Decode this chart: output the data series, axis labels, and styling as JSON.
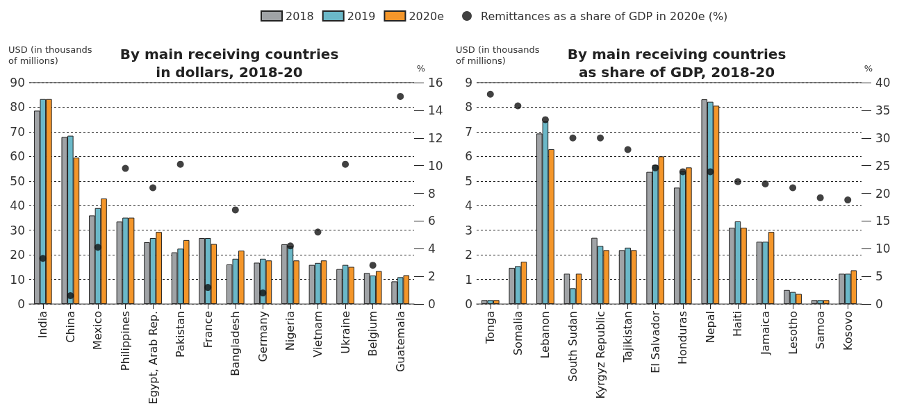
{
  "chart_data": [
    {
      "type": "bar",
      "title": "By main receiving countries\nin dollars, 2018-20",
      "ylabel": "USD (in thousands\nof millions)",
      "y2label": "%",
      "categories": [
        "India",
        "China",
        "Mexico",
        "Philippines",
        "Egypt, Arab Rep.",
        "Pakistan",
        "France",
        "Bangladesh",
        "Germany",
        "Nigeria",
        "Vietnam",
        "Ukraine",
        "Belgium",
        "Guatemala"
      ],
      "series": [
        {
          "name": "2018",
          "color": "#a0a3a6",
          "values": [
            78.6,
            67.9,
            36,
            33.5,
            25.1,
            21,
            26.8,
            16.1,
            16.8,
            24.3,
            15.9,
            14.2,
            12.6,
            9.2
          ]
        },
        {
          "name": "2019",
          "color": "#6bb8c8",
          "values": [
            83.3,
            68.4,
            39,
            35.1,
            26.8,
            22.5,
            26.8,
            18.4,
            18.4,
            23.4,
            16.7,
            15.9,
            11.6,
            10.9
          ]
        },
        {
          "name": "2020e",
          "color": "#f4962a",
          "values": [
            83.3,
            59.5,
            42.9,
            35.1,
            29.3,
            26,
            24.4,
            21.7,
            17.7,
            17.7,
            17.7,
            15.1,
            13.4,
            11.7
          ]
        },
        {
          "type": "scatter",
          "axis": "y2",
          "color": "#111111",
          "values": [
            3.3,
            0.6,
            4.1,
            9.8,
            8.4,
            10.1,
            1.2,
            6.8,
            0.8,
            4.2,
            5.2,
            10.1,
            2.8,
            15
          ]
        }
      ],
      "ylim": [
        0,
        90
      ],
      "yticks": [
        0,
        10,
        20,
        30,
        40,
        50,
        60,
        70,
        80,
        90
      ],
      "y2lim": [
        0,
        16
      ],
      "y2ticks": [
        0,
        2,
        4,
        6,
        8,
        10,
        12,
        14,
        16
      ],
      "grid": "y",
      "legend": "top",
      "marker": "circle"
    },
    {
      "type": "bar",
      "title": "By main receiving countries\nas share of GDP, 2018-20",
      "ylabel": "USD (in thousands\nof millions)",
      "y2label": "%",
      "categories": [
        "Tonga",
        "Somalia",
        "Lebanon",
        "South Sudan",
        "Kyrgyz Republic",
        "Tajikistan",
        "El Salvador",
        "Honduras",
        "Nepal",
        "Haiti",
        "Jamaica",
        "Lesotho",
        "Samoa",
        "Kosovo"
      ],
      "series": [
        {
          "color": "#a0a3a6",
          "values": [
            0.16,
            1.47,
            6.93,
            1.23,
            2.69,
            2.19,
            5.37,
            4.73,
            8.32,
            3.1,
            2.53,
            0.57,
            0.16,
            1.23
          ]
        },
        {
          "color": "#6bb8c8",
          "values": [
            0.16,
            1.54,
            7.42,
            0.64,
            2.36,
            2.29,
            5.65,
            5.39,
            8.22,
            3.36,
            2.53,
            0.49,
            0.16,
            1.23
          ]
        },
        {
          "color": "#f4962a",
          "values": [
            0.16,
            1.72,
            6.29,
            1.23,
            2.19,
            2.19,
            6,
            5.55,
            8.06,
            3.1,
            2.93,
            0.41,
            0.16,
            1.37
          ]
        },
        {
          "name": "Remittances as a share of GDP in 2020e (%)",
          "type": "scatter",
          "axis": "y2",
          "color": "#111111",
          "values": [
            37.9,
            35.8,
            33.3,
            30,
            30,
            27.9,
            24.6,
            23.9,
            23.9,
            22.1,
            21.7,
            21,
            19.2,
            18.8
          ]
        }
      ],
      "ylim": [
        0,
        9
      ],
      "yticks": [
        0,
        1,
        2,
        3,
        4,
        5,
        6,
        7,
        8,
        9
      ],
      "y2lim": [
        0,
        40
      ],
      "y2ticks": [
        0,
        5,
        10,
        15,
        20,
        25,
        30,
        35,
        40
      ],
      "grid": "y",
      "legend": "top",
      "marker": "circle"
    }
  ]
}
